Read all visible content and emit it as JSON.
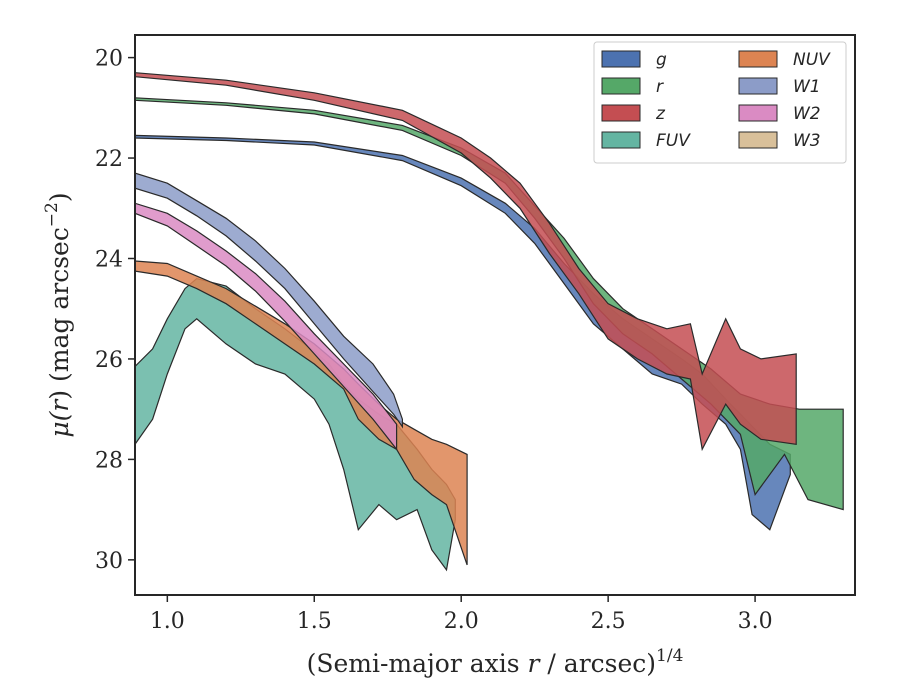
{
  "chart_data": {
    "type": "area",
    "xlabel": "(Semi-major axis r / arcsec)",
    "xlabel_parts": {
      "pre": "(Semi-major axis ",
      "var": "r",
      "post": " / arcsec)",
      "sup": "1/4"
    },
    "ylabel_parts": {
      "mu": "μ(",
      "var": "r",
      "mid": ") (mag arcsec",
      "sup": "−2",
      "end": ")"
    },
    "xlim": [
      0.89,
      3.34
    ],
    "ylim": [
      30.7,
      19.55
    ],
    "x_ticks": [
      1.0,
      1.5,
      2.0,
      2.5,
      3.0
    ],
    "x_tick_labels": [
      "1.0",
      "1.5",
      "2.0",
      "2.5",
      "3.0"
    ],
    "y_ticks": [
      20,
      22,
      24,
      26,
      28,
      30
    ],
    "y_tick_labels": [
      "20",
      "22",
      "24",
      "26",
      "28",
      "30"
    ],
    "grid": false,
    "legend_position": "top-right",
    "legend_columns": 2,
    "series": [
      {
        "name": "g",
        "color": "#4c72b0",
        "upper": [
          [
            0.89,
            21.55
          ],
          [
            1.2,
            21.6
          ],
          [
            1.5,
            21.68
          ],
          [
            1.8,
            21.95
          ],
          [
            2.0,
            22.4
          ],
          [
            2.15,
            22.9
          ],
          [
            2.25,
            23.4
          ],
          [
            2.35,
            24.1
          ],
          [
            2.45,
            24.7
          ],
          [
            2.55,
            25.2
          ],
          [
            2.65,
            25.6
          ],
          [
            2.75,
            26.0
          ],
          [
            2.82,
            26.3
          ],
          [
            2.9,
            26.8
          ],
          [
            2.95,
            27.1
          ],
          [
            3.0,
            27.4
          ],
          [
            3.05,
            27.7
          ],
          [
            3.12,
            27.9
          ]
        ],
        "lower": [
          [
            0.89,
            21.6
          ],
          [
            1.2,
            21.65
          ],
          [
            1.5,
            21.74
          ],
          [
            1.8,
            22.05
          ],
          [
            2.0,
            22.55
          ],
          [
            2.15,
            23.1
          ],
          [
            2.25,
            23.7
          ],
          [
            2.35,
            24.5
          ],
          [
            2.45,
            25.3
          ],
          [
            2.55,
            25.8
          ],
          [
            2.65,
            26.3
          ],
          [
            2.75,
            26.5
          ],
          [
            2.82,
            26.9
          ],
          [
            2.9,
            27.3
          ],
          [
            2.95,
            27.8
          ],
          [
            2.99,
            29.1
          ],
          [
            3.05,
            29.4
          ],
          [
            3.12,
            28.3
          ]
        ]
      },
      {
        "name": "r",
        "color": "#55a868",
        "upper": [
          [
            0.89,
            20.8
          ],
          [
            1.2,
            20.9
          ],
          [
            1.5,
            21.05
          ],
          [
            1.8,
            21.35
          ],
          [
            2.0,
            21.8
          ],
          [
            2.15,
            22.3
          ],
          [
            2.25,
            22.95
          ],
          [
            2.35,
            23.6
          ],
          [
            2.45,
            24.4
          ],
          [
            2.55,
            25.0
          ],
          [
            2.65,
            25.4
          ],
          [
            2.75,
            25.8
          ],
          [
            2.85,
            26.2
          ],
          [
            2.95,
            26.7
          ],
          [
            3.05,
            26.9
          ],
          [
            3.15,
            27.0
          ],
          [
            3.3,
            27.0
          ]
        ],
        "lower": [
          [
            0.89,
            20.85
          ],
          [
            1.2,
            20.95
          ],
          [
            1.5,
            21.12
          ],
          [
            1.8,
            21.45
          ],
          [
            2.0,
            21.95
          ],
          [
            2.15,
            22.5
          ],
          [
            2.25,
            23.2
          ],
          [
            2.35,
            24.0
          ],
          [
            2.45,
            24.9
          ],
          [
            2.55,
            25.5
          ],
          [
            2.65,
            25.9
          ],
          [
            2.75,
            26.4
          ],
          [
            2.85,
            26.9
          ],
          [
            2.95,
            27.5
          ],
          [
            3.0,
            28.7
          ],
          [
            3.1,
            27.9
          ],
          [
            3.18,
            28.8
          ],
          [
            3.3,
            29.0
          ]
        ]
      },
      {
        "name": "z",
        "color": "#c44e52",
        "upper": [
          [
            0.89,
            20.3
          ],
          [
            1.2,
            20.45
          ],
          [
            1.5,
            20.7
          ],
          [
            1.8,
            21.05
          ],
          [
            2.0,
            21.6
          ],
          [
            2.1,
            22.0
          ],
          [
            2.2,
            22.5
          ],
          [
            2.3,
            23.3
          ],
          [
            2.4,
            24.2
          ],
          [
            2.5,
            24.9
          ],
          [
            2.6,
            25.2
          ],
          [
            2.7,
            25.4
          ],
          [
            2.78,
            25.3
          ],
          [
            2.82,
            26.3
          ],
          [
            2.9,
            25.2
          ],
          [
            2.95,
            25.8
          ],
          [
            3.02,
            26.0
          ],
          [
            3.14,
            25.9
          ]
        ],
        "lower": [
          [
            0.89,
            20.38
          ],
          [
            1.2,
            20.55
          ],
          [
            1.5,
            20.85
          ],
          [
            1.8,
            21.25
          ],
          [
            2.0,
            21.9
          ],
          [
            2.1,
            22.4
          ],
          [
            2.2,
            23.0
          ],
          [
            2.3,
            23.9
          ],
          [
            2.4,
            24.7
          ],
          [
            2.5,
            25.6
          ],
          [
            2.6,
            26.0
          ],
          [
            2.7,
            26.3
          ],
          [
            2.78,
            26.4
          ],
          [
            2.82,
            27.8
          ],
          [
            2.9,
            26.9
          ],
          [
            2.95,
            27.3
          ],
          [
            3.02,
            27.6
          ],
          [
            3.14,
            27.7
          ]
        ]
      },
      {
        "name": "FUV",
        "color": "#64b5a2",
        "upper": [
          [
            0.89,
            26.15
          ],
          [
            0.95,
            25.8
          ],
          [
            1.0,
            25.2
          ],
          [
            1.06,
            24.6
          ],
          [
            1.1,
            24.4
          ],
          [
            1.2,
            24.55
          ],
          [
            1.3,
            25.0
          ],
          [
            1.4,
            25.4
          ],
          [
            1.5,
            25.85
          ],
          [
            1.55,
            26.1
          ],
          [
            1.6,
            26.5
          ],
          [
            1.65,
            26.8
          ],
          [
            1.72,
            27.1
          ],
          [
            1.78,
            27.3
          ],
          [
            1.85,
            27.8
          ],
          [
            1.9,
            28.2
          ],
          [
            1.95,
            28.5
          ],
          [
            1.98,
            28.8
          ]
        ],
        "lower": [
          [
            0.89,
            27.7
          ],
          [
            0.95,
            27.2
          ],
          [
            1.0,
            26.3
          ],
          [
            1.06,
            25.4
          ],
          [
            1.1,
            25.2
          ],
          [
            1.2,
            25.7
          ],
          [
            1.3,
            26.1
          ],
          [
            1.4,
            26.3
          ],
          [
            1.5,
            26.8
          ],
          [
            1.55,
            27.3
          ],
          [
            1.6,
            28.2
          ],
          [
            1.65,
            29.4
          ],
          [
            1.72,
            28.9
          ],
          [
            1.78,
            29.2
          ],
          [
            1.85,
            29.0
          ],
          [
            1.9,
            29.8
          ],
          [
            1.95,
            30.2
          ],
          [
            1.98,
            29.2
          ]
        ]
      },
      {
        "name": "NUV",
        "color": "#dd8452",
        "upper": [
          [
            0.89,
            24.05
          ],
          [
            1.0,
            24.1
          ],
          [
            1.1,
            24.35
          ],
          [
            1.2,
            24.6
          ],
          [
            1.3,
            24.95
          ],
          [
            1.4,
            25.3
          ],
          [
            1.5,
            25.7
          ],
          [
            1.6,
            26.2
          ],
          [
            1.65,
            26.5
          ],
          [
            1.72,
            26.9
          ],
          [
            1.78,
            27.2
          ],
          [
            1.84,
            27.4
          ],
          [
            1.9,
            27.6
          ],
          [
            1.95,
            27.7
          ],
          [
            2.02,
            27.9
          ]
        ],
        "lower": [
          [
            0.89,
            24.25
          ],
          [
            1.0,
            24.35
          ],
          [
            1.1,
            24.6
          ],
          [
            1.2,
            24.9
          ],
          [
            1.3,
            25.3
          ],
          [
            1.4,
            25.7
          ],
          [
            1.5,
            26.1
          ],
          [
            1.6,
            26.6
          ],
          [
            1.65,
            27.2
          ],
          [
            1.72,
            27.6
          ],
          [
            1.78,
            27.8
          ],
          [
            1.84,
            28.4
          ],
          [
            1.9,
            28.7
          ],
          [
            1.95,
            28.9
          ],
          [
            2.02,
            30.1
          ]
        ]
      },
      {
        "name": "W1",
        "color": "#8c9cc8",
        "upper": [
          [
            0.89,
            22.3
          ],
          [
            1.0,
            22.5
          ],
          [
            1.1,
            22.85
          ],
          [
            1.2,
            23.2
          ],
          [
            1.3,
            23.65
          ],
          [
            1.4,
            24.2
          ],
          [
            1.5,
            24.85
          ],
          [
            1.6,
            25.55
          ],
          [
            1.7,
            26.1
          ],
          [
            1.77,
            26.7
          ],
          [
            1.8,
            27.2
          ]
        ],
        "lower": [
          [
            0.89,
            22.6
          ],
          [
            1.0,
            22.8
          ],
          [
            1.1,
            23.15
          ],
          [
            1.2,
            23.55
          ],
          [
            1.3,
            24.05
          ],
          [
            1.4,
            24.6
          ],
          [
            1.5,
            25.3
          ],
          [
            1.6,
            26.0
          ],
          [
            1.7,
            26.65
          ],
          [
            1.77,
            27.1
          ],
          [
            1.8,
            27.35
          ]
        ]
      },
      {
        "name": "W2",
        "color": "#da8bc3",
        "upper": [
          [
            0.89,
            22.9
          ],
          [
            1.0,
            23.1
          ],
          [
            1.1,
            23.45
          ],
          [
            1.2,
            23.85
          ],
          [
            1.3,
            24.3
          ],
          [
            1.4,
            24.85
          ],
          [
            1.5,
            25.5
          ],
          [
            1.6,
            26.1
          ],
          [
            1.7,
            26.7
          ],
          [
            1.78,
            27.3
          ]
        ],
        "lower": [
          [
            0.89,
            23.1
          ],
          [
            1.0,
            23.35
          ],
          [
            1.1,
            23.75
          ],
          [
            1.2,
            24.15
          ],
          [
            1.3,
            24.65
          ],
          [
            1.4,
            25.25
          ],
          [
            1.5,
            25.9
          ],
          [
            1.6,
            26.55
          ],
          [
            1.7,
            27.2
          ],
          [
            1.78,
            27.8
          ]
        ]
      },
      {
        "name": "W3",
        "color": "#d9c09a",
        "upper": [],
        "lower": []
      }
    ]
  }
}
